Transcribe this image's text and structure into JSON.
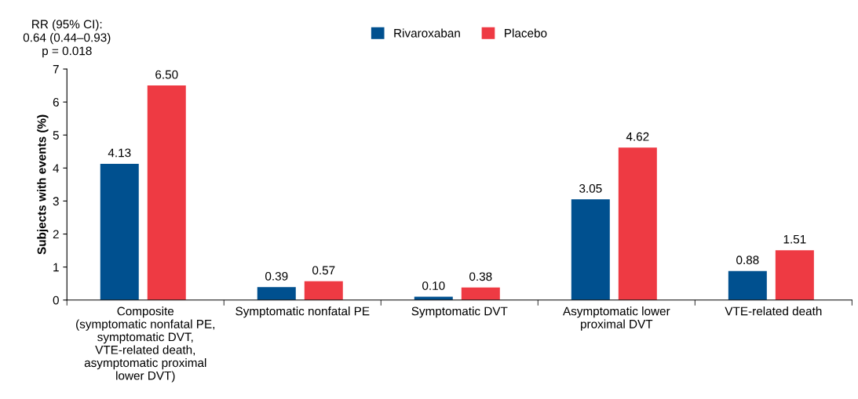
{
  "chart_data": {
    "type": "bar",
    "ylabel": "Subjects with events (%)",
    "categories": [
      "Composite\n(symptomatic nonfatal PE,\nsymptomatic DVT,\nVTE-related death,\nasymptomatic proximal\nlower DVT)",
      "Symptomatic nonfatal PE",
      "Symptomatic DVT",
      "Asymptomatic lower\nproximal DVT",
      "VTE-related death"
    ],
    "series": [
      {
        "name": "Rivaroxaban",
        "color": "#00508f",
        "values": [
          4.13,
          0.39,
          0.1,
          3.05,
          0.88
        ],
        "value_labels": [
          "4.13",
          "0.39",
          "0.10",
          "3.05",
          "0.88"
        ]
      },
      {
        "name": "Placebo",
        "color": "#ee3a43",
        "values": [
          6.5,
          0.57,
          0.38,
          4.62,
          1.51
        ],
        "value_labels": [
          "6.50",
          "0.57",
          "0.38",
          "4.62",
          "1.51"
        ]
      }
    ],
    "ylim": [
      0,
      7
    ],
    "yticks": [
      0,
      1,
      2,
      3,
      4,
      5,
      6,
      7
    ],
    "grid": false,
    "legend": "top",
    "annotations": [
      "RR (95% CI):\n0.64 (0.44–0.93)\np = 0.018"
    ]
  }
}
